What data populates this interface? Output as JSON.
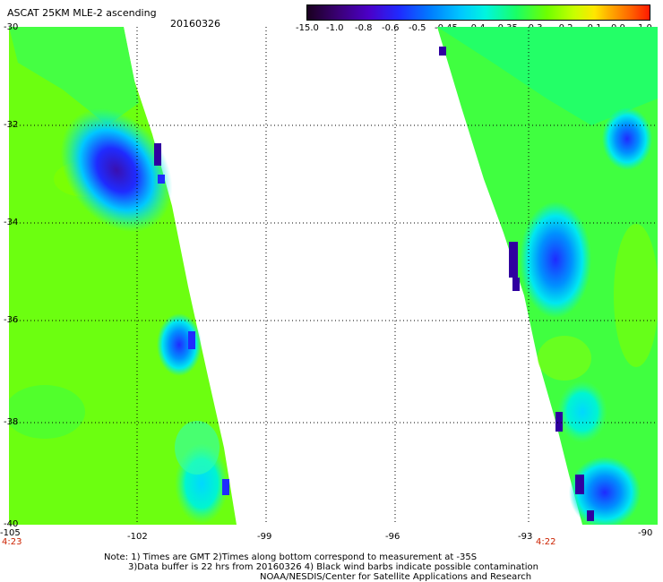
{
  "header": {
    "title": "ASCAT 25KM MLE-2 ascending",
    "date": "20160326"
  },
  "colorbar": {
    "labels": [
      "-15.0",
      "-1.0",
      "-0.8",
      "-0.6",
      "-0.5",
      "-0.45",
      "-0.4",
      "-0.35",
      "-0.3",
      "-0.2",
      "-0.1",
      "0.0",
      "1.0"
    ]
  },
  "axes": {
    "y_labels": [
      "-30",
      "-32",
      "-34",
      "-36",
      "-38",
      "-40"
    ],
    "x_labels": [
      "-105",
      "-102",
      "-99",
      "-96",
      "-93",
      "-90"
    ]
  },
  "times": {
    "left": "4:23",
    "right": "4:22"
  },
  "notes": {
    "line1": "Note: 1) Times are GMT 2)Times along bottom correspond to measurement at -35S",
    "line2": "3)Data buffer is 22 hrs from 20160326 4) Black wind barbs indicate possible contamination",
    "line3": "NOAA/NESDIS/Center for Satellite Applications and Research"
  },
  "colors": {
    "grid": "#000000",
    "time_labels": "#cc2200"
  }
}
